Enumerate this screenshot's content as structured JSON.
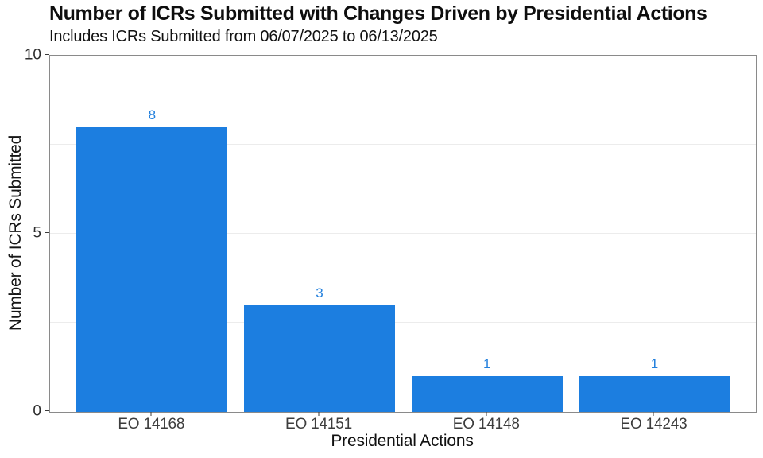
{
  "chart_data": {
    "type": "bar",
    "title": "Number of ICRs Submitted with Changes Driven by Presidential Actions",
    "subtitle": "Includes ICRs Submitted from 06/07/2025 to 06/13/2025",
    "xlabel": "Presidential Actions",
    "ylabel": "Number of ICRs Submitted",
    "categories": [
      "EO 14168",
      "EO 14151",
      "EO 14148",
      "EO 14243"
    ],
    "values": [
      8,
      3,
      1,
      1
    ],
    "value_labels": [
      "8",
      "3",
      "1",
      "1"
    ],
    "ylim": [
      0,
      10
    ],
    "yticks": [
      0,
      5,
      10
    ],
    "ytick_labels": [
      "0",
      "5",
      "10"
    ],
    "gridline_values": [
      2.5,
      5,
      7.5
    ],
    "grid": "horizontal only, very light gray",
    "legend": "none",
    "colors": {
      "bar": "#1c7ee0",
      "value_label": "#2380dd",
      "gridline": "#ececec",
      "plot_border": "#8a8a8a",
      "tick_mark": "#3a3a3a",
      "tick_label": "#2e2e2e",
      "category_label": "#3d3d3d",
      "title": "#0e0e0e",
      "background": "#ffffff"
    }
  }
}
